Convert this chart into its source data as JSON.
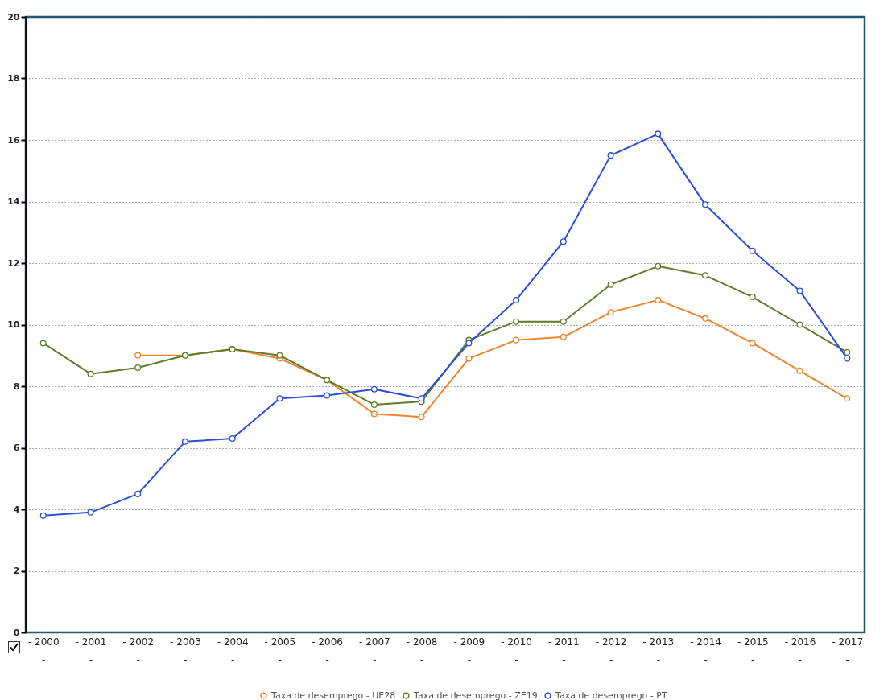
{
  "chart_data": {
    "type": "line",
    "categories": [
      "- 2000 -",
      "- 2001 -",
      "- 2002 -",
      "- 2003 -",
      "- 2004 -",
      "- 2005 -",
      "- 2006 -",
      "- 2007 -",
      "- 2008 -",
      "- 2009 -",
      "- 2010 -",
      "- 2011 -",
      "- 2012 -",
      "- 2013 -",
      "- 2014 -",
      "- 2015 -",
      "- 2016 -",
      "- 2017 -"
    ],
    "series": [
      {
        "name": "Taxa de desemprego - UE28",
        "color": "#f0842c",
        "values": [
          null,
          null,
          9.0,
          9.0,
          9.2,
          8.9,
          8.2,
          7.1,
          7.0,
          8.9,
          9.5,
          9.6,
          10.4,
          10.8,
          10.2,
          9.4,
          8.5,
          7.6
        ]
      },
      {
        "name": "Taxa de desemprego - ZE19",
        "color": "#5f7d2b",
        "values": [
          9.4,
          8.4,
          8.6,
          9.0,
          9.2,
          9.0,
          8.2,
          7.4,
          7.5,
          9.5,
          10.1,
          10.1,
          11.3,
          11.9,
          11.6,
          10.9,
          10.0,
          9.1
        ]
      },
      {
        "name": "Taxa de desemprego - PT",
        "color": "#2b50d6",
        "values": [
          3.8,
          3.9,
          4.5,
          6.2,
          6.3,
          7.6,
          7.7,
          7.9,
          7.6,
          9.4,
          10.8,
          12.7,
          15.5,
          16.2,
          13.9,
          12.4,
          11.1,
          8.9
        ]
      }
    ],
    "ylim": [
      0,
      20
    ],
    "yticks": [
      0,
      2,
      4,
      6,
      8,
      10,
      12,
      14,
      16,
      18,
      20
    ],
    "grid": "y",
    "legend": "bottom",
    "marker": "circle",
    "line_style": "solid"
  }
}
